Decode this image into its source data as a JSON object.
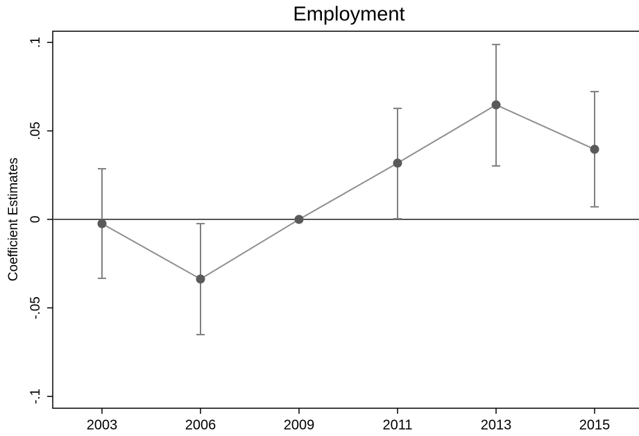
{
  "chart_data": {
    "type": "errorbar",
    "title": "Employment",
    "y_label": "Coefficient Estimates",
    "categories": [
      "2003",
      "2006",
      "2009",
      "2011",
      "2013",
      "2015"
    ],
    "series": [
      {
        "color": "#5a5a5a",
        "line_color": "#8f8f8f",
        "errorbar_color": "#7f7f7f",
        "values": [
          -0.0024,
          -0.0337,
          0,
          0.0318,
          0.0647,
          0.0396
        ],
        "ci_low": [
          -0.0333,
          -0.0651,
          null,
          0.0004,
          0.0302,
          0.0071
        ],
        "ci_high": [
          0.0286,
          -0.0024,
          null,
          0.0627,
          0.0988,
          0.0722
        ]
      }
    ],
    "ylim": [
      -0.1067,
      0.1063
    ],
    "yticks": [
      {
        "value": 0.1,
        "label": ".1"
      },
      {
        "value": 0.05,
        "label": ".05"
      },
      0,
      {
        "value": -0.05,
        "label": "-.05"
      },
      {
        "value": -0.1,
        "label": "-.1"
      }
    ],
    "hline": 0,
    "hline_color": "#555555",
    "grid": false
  }
}
